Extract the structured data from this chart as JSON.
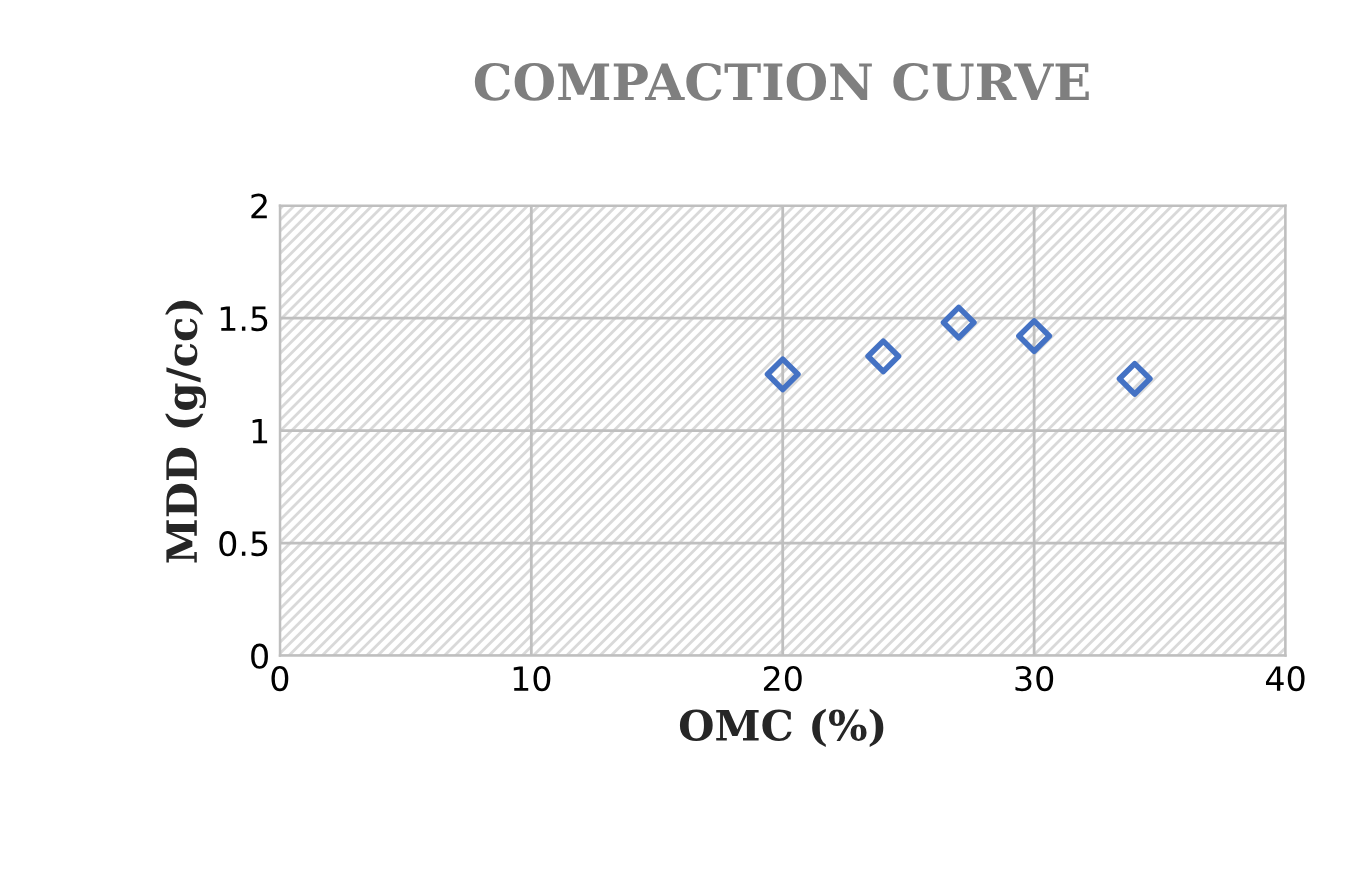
{
  "chart_data": {
    "type": "scatter",
    "title": "COMPACTION CURVE",
    "xlabel": "OMC (%)",
    "ylabel": "MDD (g/cc)",
    "x": [
      20,
      24,
      27,
      30,
      34
    ],
    "series": [
      {
        "color": "#4472c4",
        "values": [
          1.25,
          1.33,
          1.48,
          1.42,
          1.23
        ]
      }
    ],
    "xlim": [
      0,
      40
    ],
    "xticks": [
      0,
      10,
      20,
      30,
      40
    ],
    "ylim": [
      0,
      2
    ],
    "yticks": [
      0,
      0.5,
      1,
      1.5,
      2
    ],
    "grid": true,
    "marker": "diamond",
    "legend": false
  }
}
